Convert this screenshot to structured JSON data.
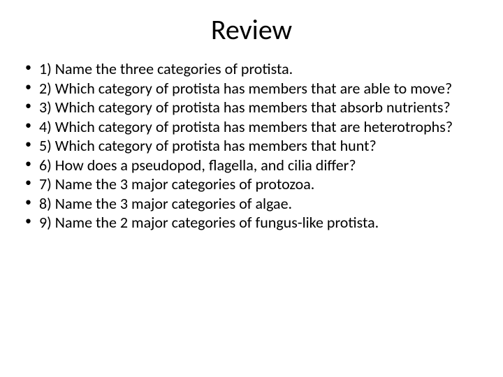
{
  "slide": {
    "title": "Review",
    "title_fontsize": 40,
    "title_color": "#000000",
    "body_fontsize": 22,
    "body_color": "#000000",
    "background_color": "#ffffff",
    "bullet_char": "•",
    "bullets": [
      "1) Name the three categories of protista.",
      "2) Which category of protista has members that are able to move?",
      "3) Which category of protista has members that absorb nutrients?",
      "4) Which category of protista has members that are heterotrophs?",
      "5) Which category of protista has members that hunt?",
      "6) How does a pseudopod, flagella, and cilia differ?",
      "7) Name the 3 major categories of protozoa.",
      "8) Name the 3 major categories of algae.",
      "9) Name the 2 major categories of fungus-like protista."
    ]
  }
}
